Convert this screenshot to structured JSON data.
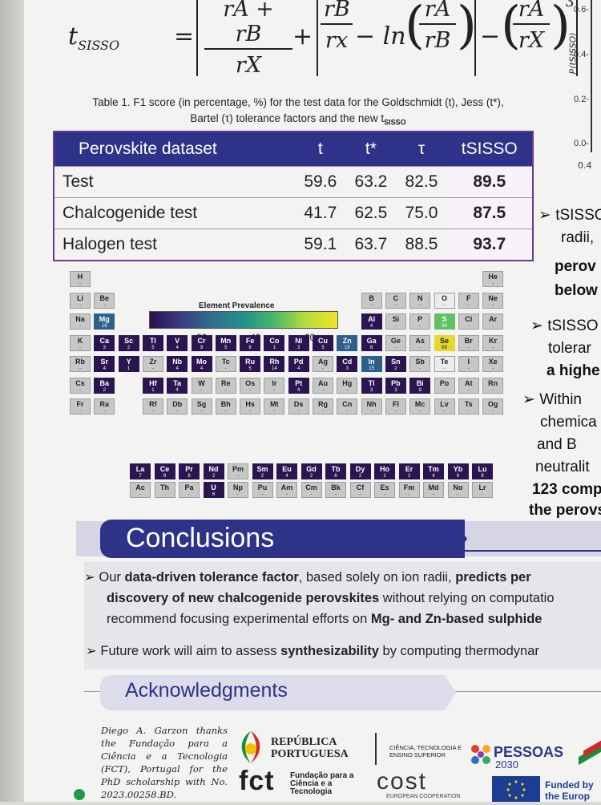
{
  "formula": {
    "lhs": "t",
    "lhs_sub": "SISSO",
    "eq": "=",
    "frac1_num": "rA + rB",
    "frac1_den": "rX",
    "plus": "+",
    "frac2_num": "rB",
    "frac2_den": "rx",
    "minus_ln": "− ln",
    "frac3_num": "rA",
    "frac3_den": "rB",
    "minus": "−",
    "frac4_num": "rA",
    "frac4_den": "rX",
    "exp": "3"
  },
  "plot": {
    "ylabel": "P(tSISSO)",
    "yticks": [
      "0.6-",
      "0.4-",
      "0.2-",
      "0.0-"
    ],
    "xtick": "0.4"
  },
  "caption": {
    "line1": "Table 1. F1 score (in percentage, %) for the test data for the Goldschmidt (t), Jess (t*),",
    "line2": "Bartel (τ) tolerance factors and the new t",
    "line2_sub": "SISSO"
  },
  "table": {
    "headers": [
      "Perovskite dataset",
      "t",
      "t*",
      "τ",
      "tSISSO"
    ],
    "rows": [
      [
        "Test",
        "59.6",
        "63.2",
        "82.5",
        "89.5"
      ],
      [
        "Chalcogenide test",
        "41.7",
        "62.5",
        "75.0",
        "87.5"
      ],
      [
        "Halogen test",
        "59.1",
        "63.7",
        "88.5",
        "93.7"
      ]
    ]
  },
  "right_column": {
    "lines": [
      "➢ tSISSO",
      "radii,",
      "perov",
      "below",
      "➢ tSISSO",
      "tolerar",
      "a highe",
      "➢ Within",
      "chemica",
      "and B",
      "neutralit",
      "123 comp",
      "the perovs"
    ]
  },
  "periodic_table": {
    "colorbar_title": "Element Prevalence",
    "colorbar_ticks": [
      "20",
      "40",
      "60"
    ],
    "colors": {
      "dark": "#2a1551",
      "mid": "#2c5f8a",
      "teal": "#26877f",
      "green": "#5ec262",
      "yellow": "#e6d72a",
      "empty": "#c7c7c7"
    },
    "elements": [
      {
        "s": "H",
        "c": "-",
        "r": 0,
        "g": 0,
        "k": "empty"
      },
      {
        "s": "He",
        "c": "-",
        "r": 0,
        "g": 17,
        "k": "empty"
      },
      {
        "s": "Li",
        "c": "-",
        "r": 1,
        "g": 0,
        "k": "empty"
      },
      {
        "s": "Be",
        "c": "-",
        "r": 1,
        "g": 1,
        "k": "empty"
      },
      {
        "s": "B",
        "c": "-",
        "r": 1,
        "g": 12,
        "k": "empty"
      },
      {
        "s": "C",
        "c": "-",
        "r": 1,
        "g": 13,
        "k": "empty"
      },
      {
        "s": "N",
        "c": "-",
        "r": 1,
        "g": 14,
        "k": "empty"
      },
      {
        "s": "O",
        "c": "-",
        "r": 1,
        "g": 15,
        "k": "white"
      },
      {
        "s": "F",
        "c": "-",
        "r": 1,
        "g": 16,
        "k": "empty"
      },
      {
        "s": "Ne",
        "c": "-",
        "r": 1,
        "g": 17,
        "k": "empty"
      },
      {
        "s": "Na",
        "c": "-",
        "r": 2,
        "g": 0,
        "k": "empty"
      },
      {
        "s": "Mg",
        "c": "19",
        "r": 2,
        "g": 1,
        "k": "mid"
      },
      {
        "s": "Al",
        "c": "4",
        "r": 2,
        "g": 12,
        "k": "dark"
      },
      {
        "s": "Si",
        "c": "-",
        "r": 2,
        "g": 13,
        "k": "empty"
      },
      {
        "s": "P",
        "c": "-",
        "r": 2,
        "g": 14,
        "k": "empty"
      },
      {
        "s": "S",
        "c": "54",
        "r": 2,
        "g": 15,
        "k": "green"
      },
      {
        "s": "Cl",
        "c": "-",
        "r": 2,
        "g": 16,
        "k": "empty"
      },
      {
        "s": "Ar",
        "c": "-",
        "r": 2,
        "g": 17,
        "k": "empty"
      },
      {
        "s": "K",
        "c": "-",
        "r": 3,
        "g": 0,
        "k": "empty"
      },
      {
        "s": "Ca",
        "c": "3",
        "r": 3,
        "g": 1,
        "k": "dark"
      },
      {
        "s": "Sc",
        "c": "2",
        "r": 3,
        "g": 2,
        "k": "dark"
      },
      {
        "s": "Ti",
        "c": "5",
        "r": 3,
        "g": 3,
        "k": "dark"
      },
      {
        "s": "V",
        "c": "4",
        "r": 3,
        "g": 4,
        "k": "dark"
      },
      {
        "s": "Cr",
        "c": "9",
        "r": 3,
        "g": 5,
        "k": "dark"
      },
      {
        "s": "Mn",
        "c": "5",
        "r": 3,
        "g": 6,
        "k": "dark"
      },
      {
        "s": "Fe",
        "c": "8",
        "r": 3,
        "g": 7,
        "k": "dark"
      },
      {
        "s": "Co",
        "c": "1",
        "r": 3,
        "g": 8,
        "k": "dark"
      },
      {
        "s": "Ni",
        "c": "3",
        "r": 3,
        "g": 9,
        "k": "dark"
      },
      {
        "s": "Cu",
        "c": "5",
        "r": 3,
        "g": 10,
        "k": "dark"
      },
      {
        "s": "Zn",
        "c": "19",
        "r": 3,
        "g": 11,
        "k": "mid"
      },
      {
        "s": "Ga",
        "c": "8",
        "r": 3,
        "g": 12,
        "k": "dark"
      },
      {
        "s": "Ge",
        "c": "-",
        "r": 3,
        "g": 13,
        "k": "empty"
      },
      {
        "s": "As",
        "c": "-",
        "r": 3,
        "g": 14,
        "k": "empty"
      },
      {
        "s": "Se",
        "c": "69",
        "r": 3,
        "g": 15,
        "k": "yellow"
      },
      {
        "s": "Br",
        "c": "-",
        "r": 3,
        "g": 16,
        "k": "empty"
      },
      {
        "s": "Kr",
        "c": "-",
        "r": 3,
        "g": 17,
        "k": "empty"
      },
      {
        "s": "Rb",
        "c": "-",
        "r": 4,
        "g": 0,
        "k": "empty"
      },
      {
        "s": "Sr",
        "c": "4",
        "r": 4,
        "g": 1,
        "k": "dark"
      },
      {
        "s": "Y",
        "c": "1",
        "r": 4,
        "g": 2,
        "k": "dark"
      },
      {
        "s": "Zr",
        "c": "-",
        "r": 4,
        "g": 3,
        "k": "empty"
      },
      {
        "s": "Nb",
        "c": "4",
        "r": 4,
        "g": 4,
        "k": "dark"
      },
      {
        "s": "Mo",
        "c": "4",
        "r": 4,
        "g": 5,
        "k": "dark"
      },
      {
        "s": "Tc",
        "c": "-",
        "r": 4,
        "g": 6,
        "k": "empty"
      },
      {
        "s": "Ru",
        "c": "5",
        "r": 4,
        "g": 7,
        "k": "dark"
      },
      {
        "s": "Rh",
        "c": "14",
        "r": 4,
        "g": 8,
        "k": "dark"
      },
      {
        "s": "Pd",
        "c": "4",
        "r": 4,
        "g": 9,
        "k": "dark"
      },
      {
        "s": "Ag",
        "c": "-",
        "r": 4,
        "g": 10,
        "k": "empty"
      },
      {
        "s": "Cd",
        "c": "3",
        "r": 4,
        "g": 11,
        "k": "dark"
      },
      {
        "s": "In",
        "c": "15",
        "r": 4,
        "g": 12,
        "k": "mid"
      },
      {
        "s": "Sn",
        "c": "2",
        "r": 4,
        "g": 13,
        "k": "dark"
      },
      {
        "s": "Sb",
        "c": "-",
        "r": 4,
        "g": 14,
        "k": "empty"
      },
      {
        "s": "Te",
        "c": "-",
        "r": 4,
        "g": 15,
        "k": "white"
      },
      {
        "s": "I",
        "c": "-",
        "r": 4,
        "g": 16,
        "k": "empty"
      },
      {
        "s": "Xe",
        "c": "-",
        "r": 4,
        "g": 17,
        "k": "empty"
      },
      {
        "s": "Cs",
        "c": "-",
        "r": 5,
        "g": 0,
        "k": "empty"
      },
      {
        "s": "Ba",
        "c": "2",
        "r": 5,
        "g": 1,
        "k": "dark"
      },
      {
        "s": "Hf",
        "c": "1",
        "r": 5,
        "g": 3,
        "k": "dark"
      },
      {
        "s": "Ta",
        "c": "4",
        "r": 5,
        "g": 4,
        "k": "dark"
      },
      {
        "s": "W",
        "c": "-",
        "r": 5,
        "g": 5,
        "k": "empty"
      },
      {
        "s": "Re",
        "c": "-",
        "r": 5,
        "g": 6,
        "k": "empty"
      },
      {
        "s": "Os",
        "c": "-",
        "r": 5,
        "g": 7,
        "k": "empty"
      },
      {
        "s": "Ir",
        "c": "-",
        "r": 5,
        "g": 8,
        "k": "empty"
      },
      {
        "s": "Pt",
        "c": "4",
        "r": 5,
        "g": 9,
        "k": "dark"
      },
      {
        "s": "Au",
        "c": "-",
        "r": 5,
        "g": 10,
        "k": "empty"
      },
      {
        "s": "Hg",
        "c": "-",
        "r": 5,
        "g": 11,
        "k": "empty"
      },
      {
        "s": "Tl",
        "c": "3",
        "r": 5,
        "g": 12,
        "k": "dark"
      },
      {
        "s": "Pb",
        "c": "3",
        "r": 5,
        "g": 13,
        "k": "dark"
      },
      {
        "s": "Bi",
        "c": "9",
        "r": 5,
        "g": 14,
        "k": "dark"
      },
      {
        "s": "Po",
        "c": "-",
        "r": 5,
        "g": 15,
        "k": "empty"
      },
      {
        "s": "At",
        "c": "-",
        "r": 5,
        "g": 16,
        "k": "empty"
      },
      {
        "s": "Rn",
        "c": "-",
        "r": 5,
        "g": 17,
        "k": "empty"
      },
      {
        "s": "Fr",
        "c": "-",
        "r": 6,
        "g": 0,
        "k": "empty"
      },
      {
        "s": "Ra",
        "c": "-",
        "r": 6,
        "g": 1,
        "k": "empty"
      },
      {
        "s": "Rf",
        "c": "-",
        "r": 6,
        "g": 3,
        "k": "empty"
      },
      {
        "s": "Db",
        "c": "-",
        "r": 6,
        "g": 4,
        "k": "empty"
      },
      {
        "s": "Sg",
        "c": "-",
        "r": 6,
        "g": 5,
        "k": "empty"
      },
      {
        "s": "Bh",
        "c": "-",
        "r": 6,
        "g": 6,
        "k": "empty"
      },
      {
        "s": "Hs",
        "c": "-",
        "r": 6,
        "g": 7,
        "k": "empty"
      },
      {
        "s": "Mt",
        "c": "-",
        "r": 6,
        "g": 8,
        "k": "empty"
      },
      {
        "s": "Ds",
        "c": "-",
        "r": 6,
        "g": 9,
        "k": "empty"
      },
      {
        "s": "Rg",
        "c": "-",
        "r": 6,
        "g": 10,
        "k": "empty"
      },
      {
        "s": "Cn",
        "c": "-",
        "r": 6,
        "g": 11,
        "k": "empty"
      },
      {
        "s": "Nh",
        "c": "-",
        "r": 6,
        "g": 12,
        "k": "empty"
      },
      {
        "s": "Fl",
        "c": "-",
        "r": 6,
        "g": 13,
        "k": "empty"
      },
      {
        "s": "Mc",
        "c": "-",
        "r": 6,
        "g": 14,
        "k": "empty"
      },
      {
        "s": "Lv",
        "c": "-",
        "r": 6,
        "g": 15,
        "k": "empty"
      },
      {
        "s": "Ts",
        "c": "-",
        "r": 6,
        "g": 16,
        "k": "empty"
      },
      {
        "s": "Og",
        "c": "-",
        "r": 6,
        "g": 17,
        "k": "empty"
      },
      {
        "s": "La",
        "c": "7",
        "r": 8,
        "g": 2,
        "k": "dark"
      },
      {
        "s": "Ce",
        "c": "9",
        "r": 8,
        "g": 3,
        "k": "dark"
      },
      {
        "s": "Pr",
        "c": "8",
        "r": 8,
        "g": 4,
        "k": "dark"
      },
      {
        "s": "Nd",
        "c": "2",
        "r": 8,
        "g": 5,
        "k": "dark"
      },
      {
        "s": "Pm",
        "c": "-",
        "r": 8,
        "g": 6,
        "k": "empty"
      },
      {
        "s": "Sm",
        "c": "2",
        "r": 8,
        "g": 7,
        "k": "dark"
      },
      {
        "s": "Eu",
        "c": "4",
        "r": 8,
        "g": 8,
        "k": "dark"
      },
      {
        "s": "Gd",
        "c": "2",
        "r": 8,
        "g": 9,
        "k": "dark"
      },
      {
        "s": "Tb",
        "c": "6",
        "r": 8,
        "g": 10,
        "k": "dark"
      },
      {
        "s": "Dy",
        "c": "2",
        "r": 8,
        "g": 11,
        "k": "dark"
      },
      {
        "s": "Ho",
        "c": "1",
        "r": 8,
        "g": 12,
        "k": "dark"
      },
      {
        "s": "Er",
        "c": "2",
        "r": 8,
        "g": 13,
        "k": "dark"
      },
      {
        "s": "Tm",
        "c": "4",
        "r": 8,
        "g": 14,
        "k": "dark"
      },
      {
        "s": "Yb",
        "c": "6",
        "r": 8,
        "g": 15,
        "k": "dark"
      },
      {
        "s": "Lu",
        "c": "8",
        "r": 8,
        "g": 16,
        "k": "dark"
      },
      {
        "s": "Ac",
        "c": "-",
        "r": 9,
        "g": 2,
        "k": "empty"
      },
      {
        "s": "Th",
        "c": "-",
        "r": 9,
        "g": 3,
        "k": "empty"
      },
      {
        "s": "Pa",
        "c": "-",
        "r": 9,
        "g": 4,
        "k": "empty"
      },
      {
        "s": "U",
        "c": "6",
        "r": 9,
        "g": 5,
        "k": "dark"
      },
      {
        "s": "Np",
        "c": "-",
        "r": 9,
        "g": 6,
        "k": "empty"
      },
      {
        "s": "Pu",
        "c": "-",
        "r": 9,
        "g": 7,
        "k": "empty"
      },
      {
        "s": "Am",
        "c": "-",
        "r": 9,
        "g": 8,
        "k": "empty"
      },
      {
        "s": "Cm",
        "c": "-",
        "r": 9,
        "g": 9,
        "k": "empty"
      },
      {
        "s": "Bk",
        "c": "-",
        "r": 9,
        "g": 10,
        "k": "empty"
      },
      {
        "s": "Cf",
        "c": "-",
        "r": 9,
        "g": 11,
        "k": "empty"
      },
      {
        "s": "Es",
        "c": "-",
        "r": 9,
        "g": 12,
        "k": "empty"
      },
      {
        "s": "Fm",
        "c": "-",
        "r": 9,
        "g": 13,
        "k": "empty"
      },
      {
        "s": "Md",
        "c": "-",
        "r": 9,
        "g": 14,
        "k": "empty"
      },
      {
        "s": "No",
        "c": "-",
        "r": 9,
        "g": 15,
        "k": "empty"
      },
      {
        "s": "Lr",
        "c": "-",
        "r": 9,
        "g": 16,
        "k": "empty"
      }
    ]
  },
  "conclusions": {
    "title": "Conclusions",
    "line1a": "Our ",
    "line1b": "data-driven tolerance factor",
    "line1c": ", based solely on ion radii, ",
    "line1d": "predicts per",
    "line2a": "discovery of new chalcogenide perovskites",
    "line2b": " without relying on computatio",
    "line3a": "recommend focusing experimental efforts on ",
    "line3b": "Mg- and Zn-based sulphide",
    "line4a": "Future work will aim to assess ",
    "line4b": "synthesizability",
    "line4c": " by computing thermodynar"
  },
  "acknowledgments": {
    "title": "Acknowledgments",
    "text": "Diego A. Garzon thanks the Fundação para a Ciência e a Tecnologia (FCT), Portugal for the PhD scholarship with No. 2023.00258.BD.",
    "logo_republica": "REPÚBLICA PORTUGUESA",
    "logo_ciencia": "CIÊNCIA, TECNOLOGIA E ENSINO SUPERIOR",
    "logo_pessoas": "PESSOAS",
    "logo_pessoas_year": "2030",
    "logo_fct": "fct",
    "logo_fct_text": "Fundação para a Ciência e a Tecnologia",
    "logo_cost": "cost",
    "logo_cost_sub": "EUROPEAN COOPERATION",
    "funded": "Funded by the Europ"
  }
}
